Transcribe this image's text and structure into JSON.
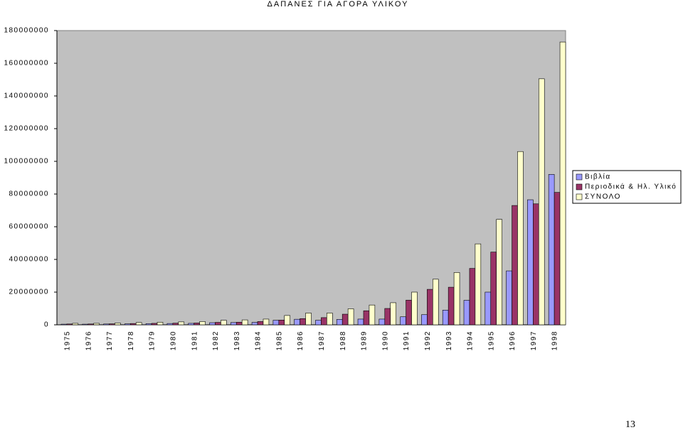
{
  "chart_data": {
    "type": "bar",
    "title": "ΔΑΠΑΝΕΣ ΓΙΑ ΑΓΟΡΑ ΥΛΙΚΟΥ",
    "categories": [
      "1975",
      "1976",
      "1977",
      "1978",
      "1979",
      "1980",
      "1981",
      "1982",
      "1983",
      "1984",
      "1985",
      "1986",
      "1987",
      "1988",
      "1989",
      "1990",
      "1991",
      "1992",
      "1993",
      "1994",
      "1995",
      "1996",
      "1997",
      "1998"
    ],
    "series": [
      {
        "name": "Βιβλία",
        "color": "#9999ff",
        "values": [
          400000,
          400000,
          500000,
          600000,
          700000,
          800000,
          900000,
          1300000,
          1400000,
          1500000,
          2800000,
          3400000,
          2800000,
          3300000,
          3500000,
          3500000,
          4900000,
          6200000,
          9000000,
          15000000,
          20000000,
          33000000,
          76500000,
          92000000
        ]
      },
      {
        "name": "Περιοδικά & Ηλ. Υλικό",
        "color": "#993366",
        "values": [
          500000,
          500000,
          600000,
          800000,
          900000,
          1000000,
          1100000,
          1500000,
          1600000,
          2000000,
          2900000,
          3800000,
          4400000,
          6500000,
          8600000,
          10000000,
          15100000,
          21700000,
          23000000,
          34500000,
          44500000,
          73000000,
          74000000,
          81000000
        ]
      },
      {
        "name": "ΣΥΝΟΛΟ",
        "color": "#ffffcc",
        "values": [
          900000,
          900000,
          1100000,
          1400000,
          1600000,
          1800000,
          2000000,
          2800000,
          3000000,
          3500000,
          5700000,
          7200000,
          7200000,
          9800000,
          12100000,
          13500000,
          20000000,
          27900000,
          32000000,
          49500000,
          64500000,
          106000000,
          150500000,
          173000000
        ]
      }
    ],
    "ylim": [
      0,
      180000000
    ],
    "yticks": [
      0,
      20000000,
      40000000,
      60000000,
      80000000,
      100000000,
      120000000,
      140000000,
      160000000,
      180000000
    ],
    "grid": false,
    "legend": "right",
    "plot_background": "#c0c0c0"
  },
  "page_number": "13"
}
